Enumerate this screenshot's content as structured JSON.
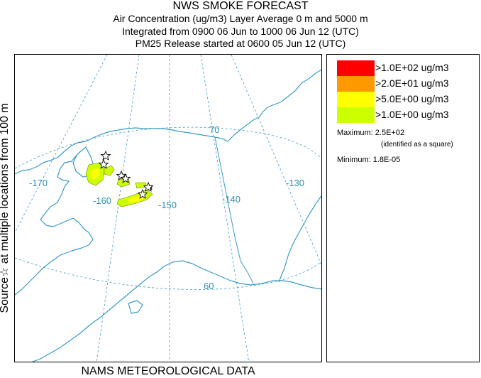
{
  "header": {
    "line1": "NWS SMOKE FORECAST",
    "line2": "Air Concentration (ug/m3) Layer Average    0 m and  5000 m",
    "line3": "Integrated from 0900 06 Jun to 1000 06 Jun 12 (UTC)",
    "line4": "PM25 Release started at 0600 05 Jun 12 (UTC)"
  },
  "side_label": "Source☆ at multiple locations from 100 m",
  "bottom_label": "NAMS METEOROLOGICAL DATA",
  "map": {
    "lon_labels": [
      "-170",
      "-160",
      "-150",
      "-140",
      "-130"
    ],
    "lat_labels": [
      "70",
      "60"
    ],
    "coast_color": "#3a9ac8",
    "grid_color": "#3a9ac8",
    "source_marker": "star-icon"
  },
  "legend": {
    "items": [
      {
        "label": ">1.0E+02 ug/m3",
        "color": "#ff0000"
      },
      {
        "label": ">2.0E+01 ug/m3",
        "color": "#ff9900"
      },
      {
        "label": ">5.0E+00 ug/m3",
        "color": "#ffff00"
      },
      {
        "label": ">1.0E+00 ug/m3",
        "color": "#ccff00"
      }
    ],
    "maximum_label": "Maximum: 2.5E+02",
    "maximum_note": "(identified as a square)",
    "minimum_label": "Minimum: 1.8E-05"
  }
}
